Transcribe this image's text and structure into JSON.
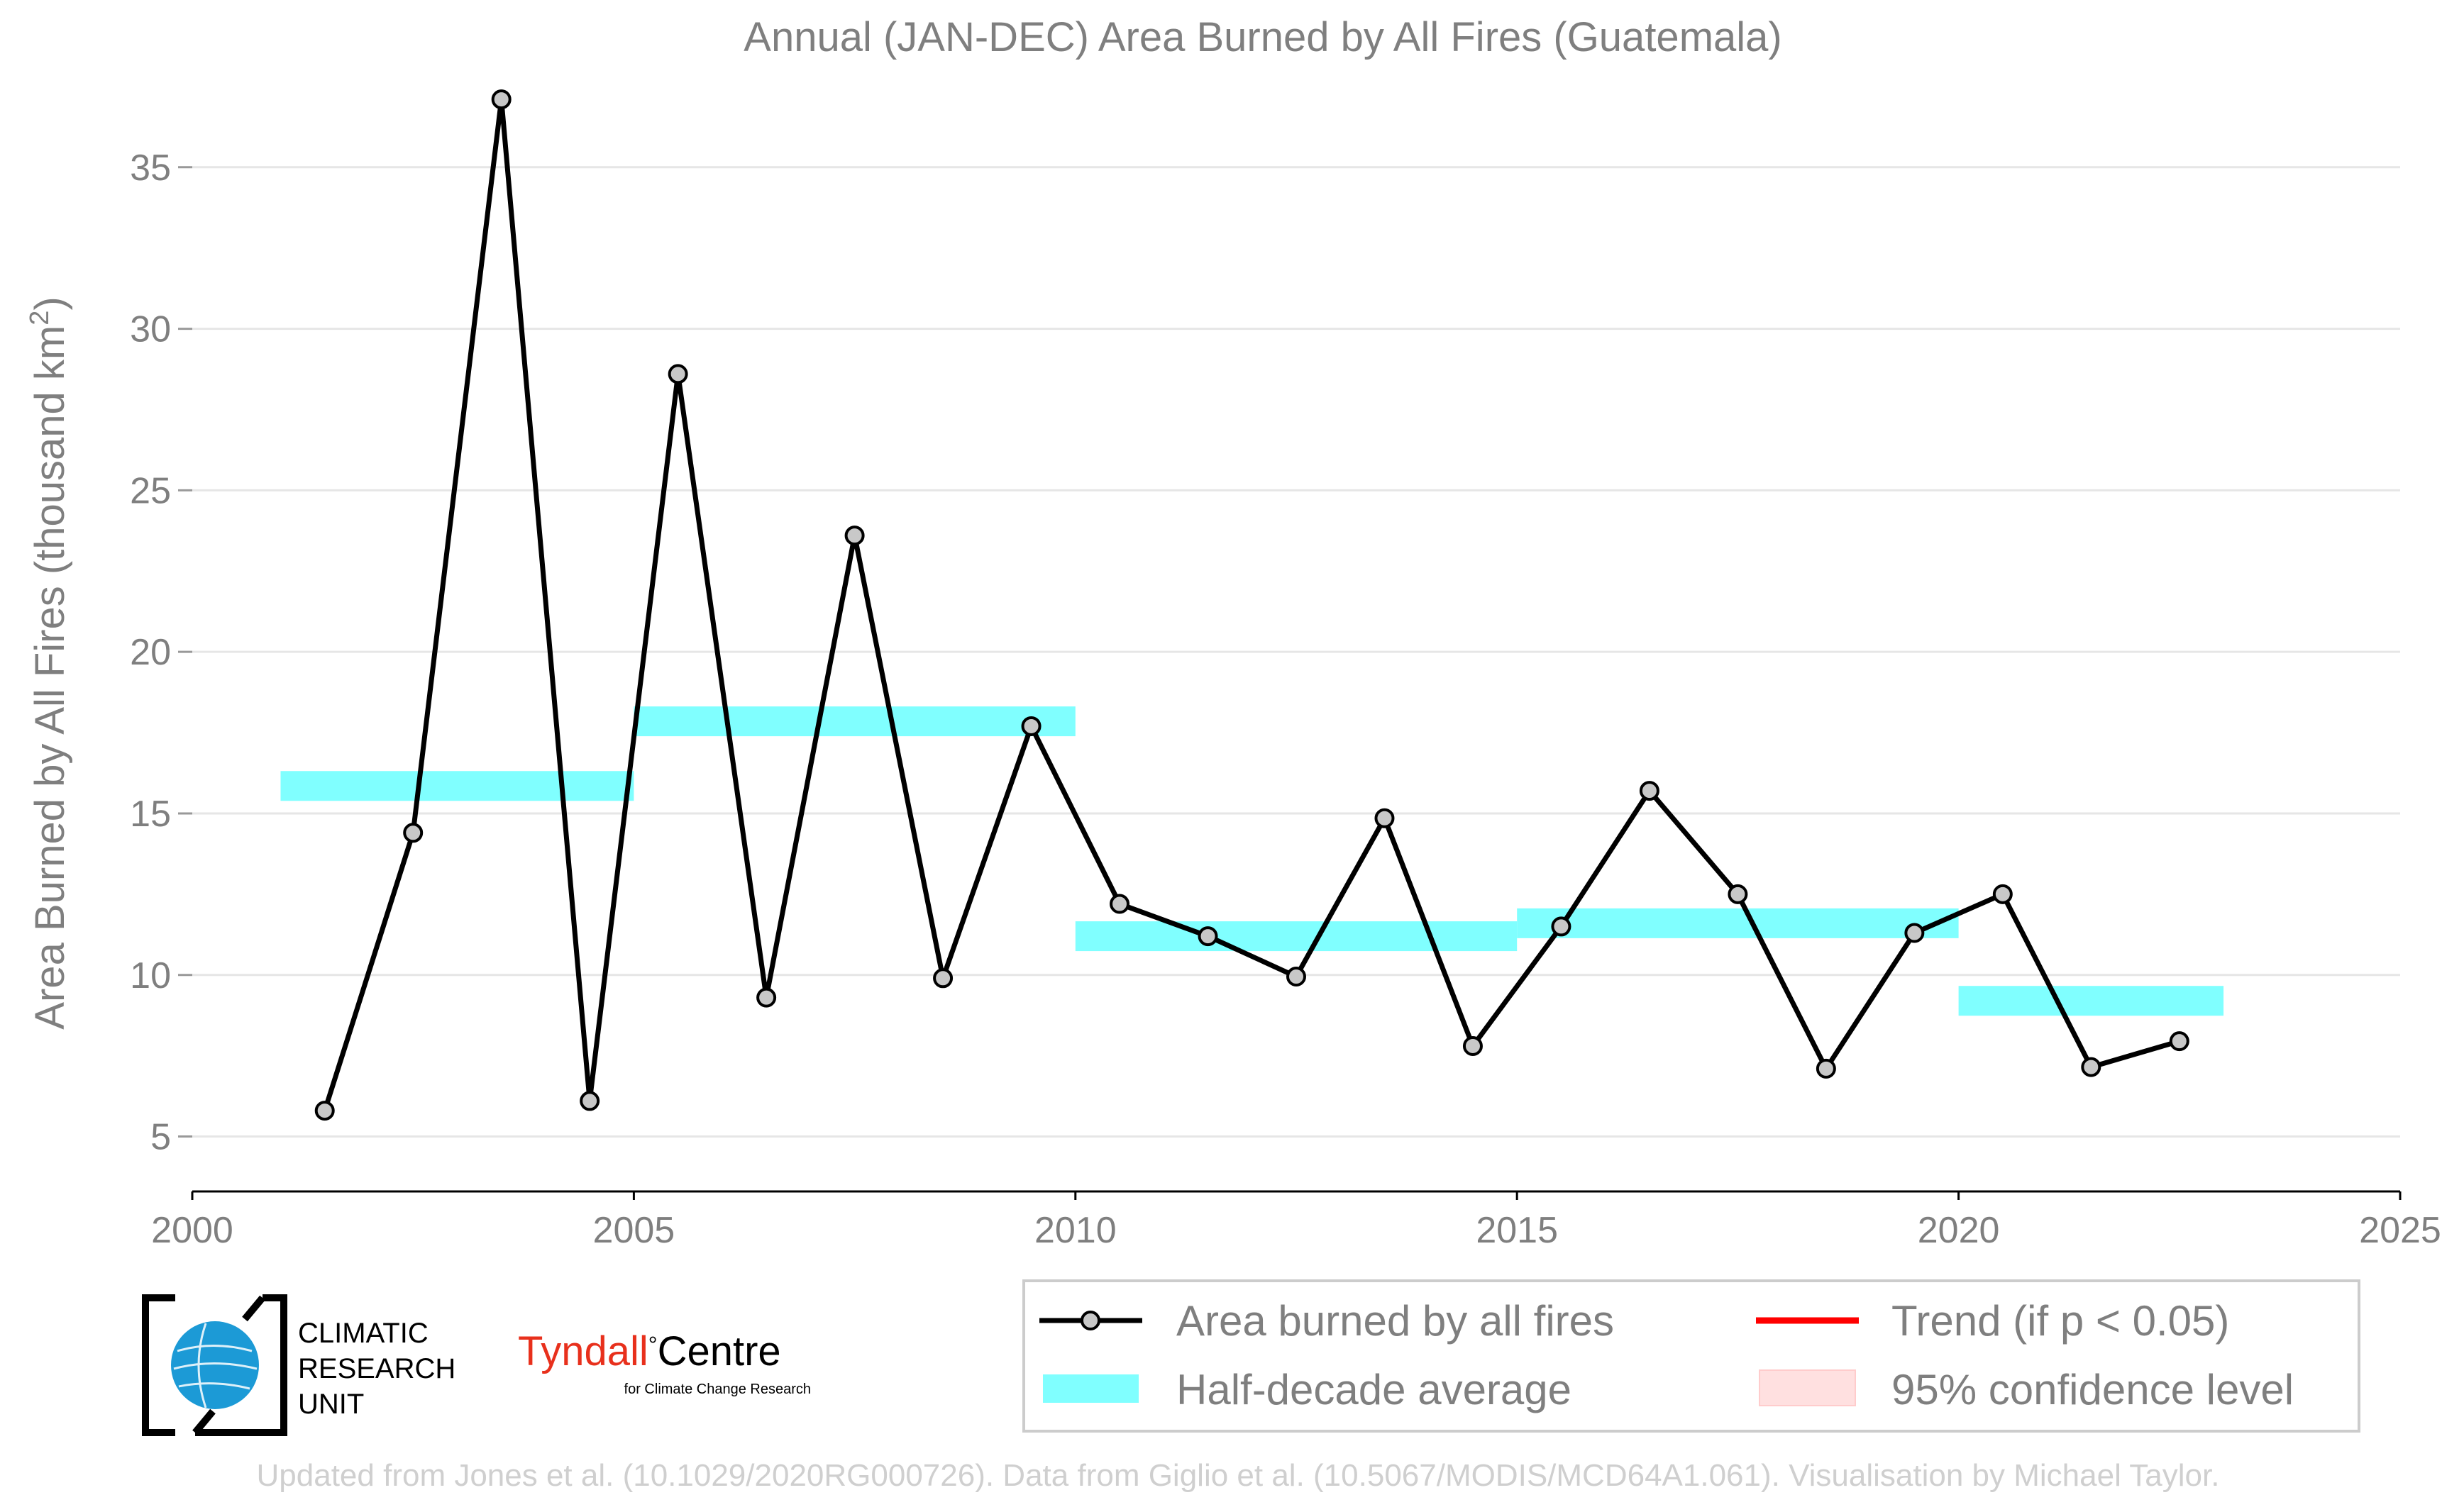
{
  "chart_data": {
    "type": "line",
    "title": "Annual (JAN-DEC) Area Burned by All Fires (Guatemala)",
    "ylabel": "Area Burned by All Fires (thousand km",
    "ylabel_superscript": "2",
    "ylabel_suffix": ")",
    "xlim": [
      2000,
      2025
    ],
    "ylim": [
      3.3,
      38.2
    ],
    "xticks": [
      "2000",
      "2005",
      "2010",
      "2015",
      "2020",
      "2025"
    ],
    "yticks": [
      "5",
      "10",
      "15",
      "20",
      "25",
      "30",
      "35"
    ],
    "grid": "horizontal",
    "series": [
      {
        "name": "Area burned by all fires",
        "color": "#000000",
        "x": [
          2001.5,
          2002.5,
          2003.5,
          2004.5,
          2005.5,
          2006.5,
          2007.5,
          2008.5,
          2009.5,
          2010.5,
          2011.5,
          2012.5,
          2013.5,
          2014.5,
          2015.5,
          2016.5,
          2017.5,
          2018.5,
          2019.5,
          2020.5,
          2021.5,
          2022.5
        ],
        "y": [
          5.8,
          14.4,
          37.1,
          6.1,
          28.6,
          9.3,
          23.6,
          9.9,
          17.7,
          12.2,
          11.2,
          9.95,
          14.85,
          7.8,
          11.5,
          15.7,
          12.5,
          7.1,
          11.3,
          12.5,
          7.15,
          7.95
        ]
      }
    ],
    "half_decade_average": {
      "name": "Half-decade average",
      "color": "#80ffff",
      "bars": [
        {
          "x0": 2001,
          "x1": 2005,
          "y": 15.85
        },
        {
          "x0": 2005,
          "x1": 2010,
          "y": 17.85
        },
        {
          "x0": 2010,
          "x1": 2015,
          "y": 11.2
        },
        {
          "x0": 2015,
          "x1": 2020,
          "y": 11.6
        },
        {
          "x0": 2020,
          "x1": 2023,
          "y": 9.2
        }
      ]
    },
    "legend": {
      "placement": "bottom-right",
      "entries": [
        "Area burned by all fires",
        "Half-decade average",
        "Trend (if p < 0.05)",
        "95% confidence level"
      ],
      "colors": {
        "line": "#000000",
        "average": "#80ffff",
        "trend": "#ff0000",
        "confidence": "#ffe0e0"
      }
    }
  },
  "logos": {
    "cru": {
      "line1": "CLIMATIC",
      "line2": "RESEARCH",
      "line3": "UNIT"
    },
    "tyndall": {
      "main1": "Tyndall",
      "degree": "°",
      "main2": "Centre",
      "sub": "for Climate Change Research",
      "accent": "#e8301c"
    }
  },
  "credit": "Updated from Jones et al. (10.1029/2020RG000726). Data from Giglio et al. (10.5067/MODIS/MCD64A1.061). Visualisation by Michael Taylor."
}
